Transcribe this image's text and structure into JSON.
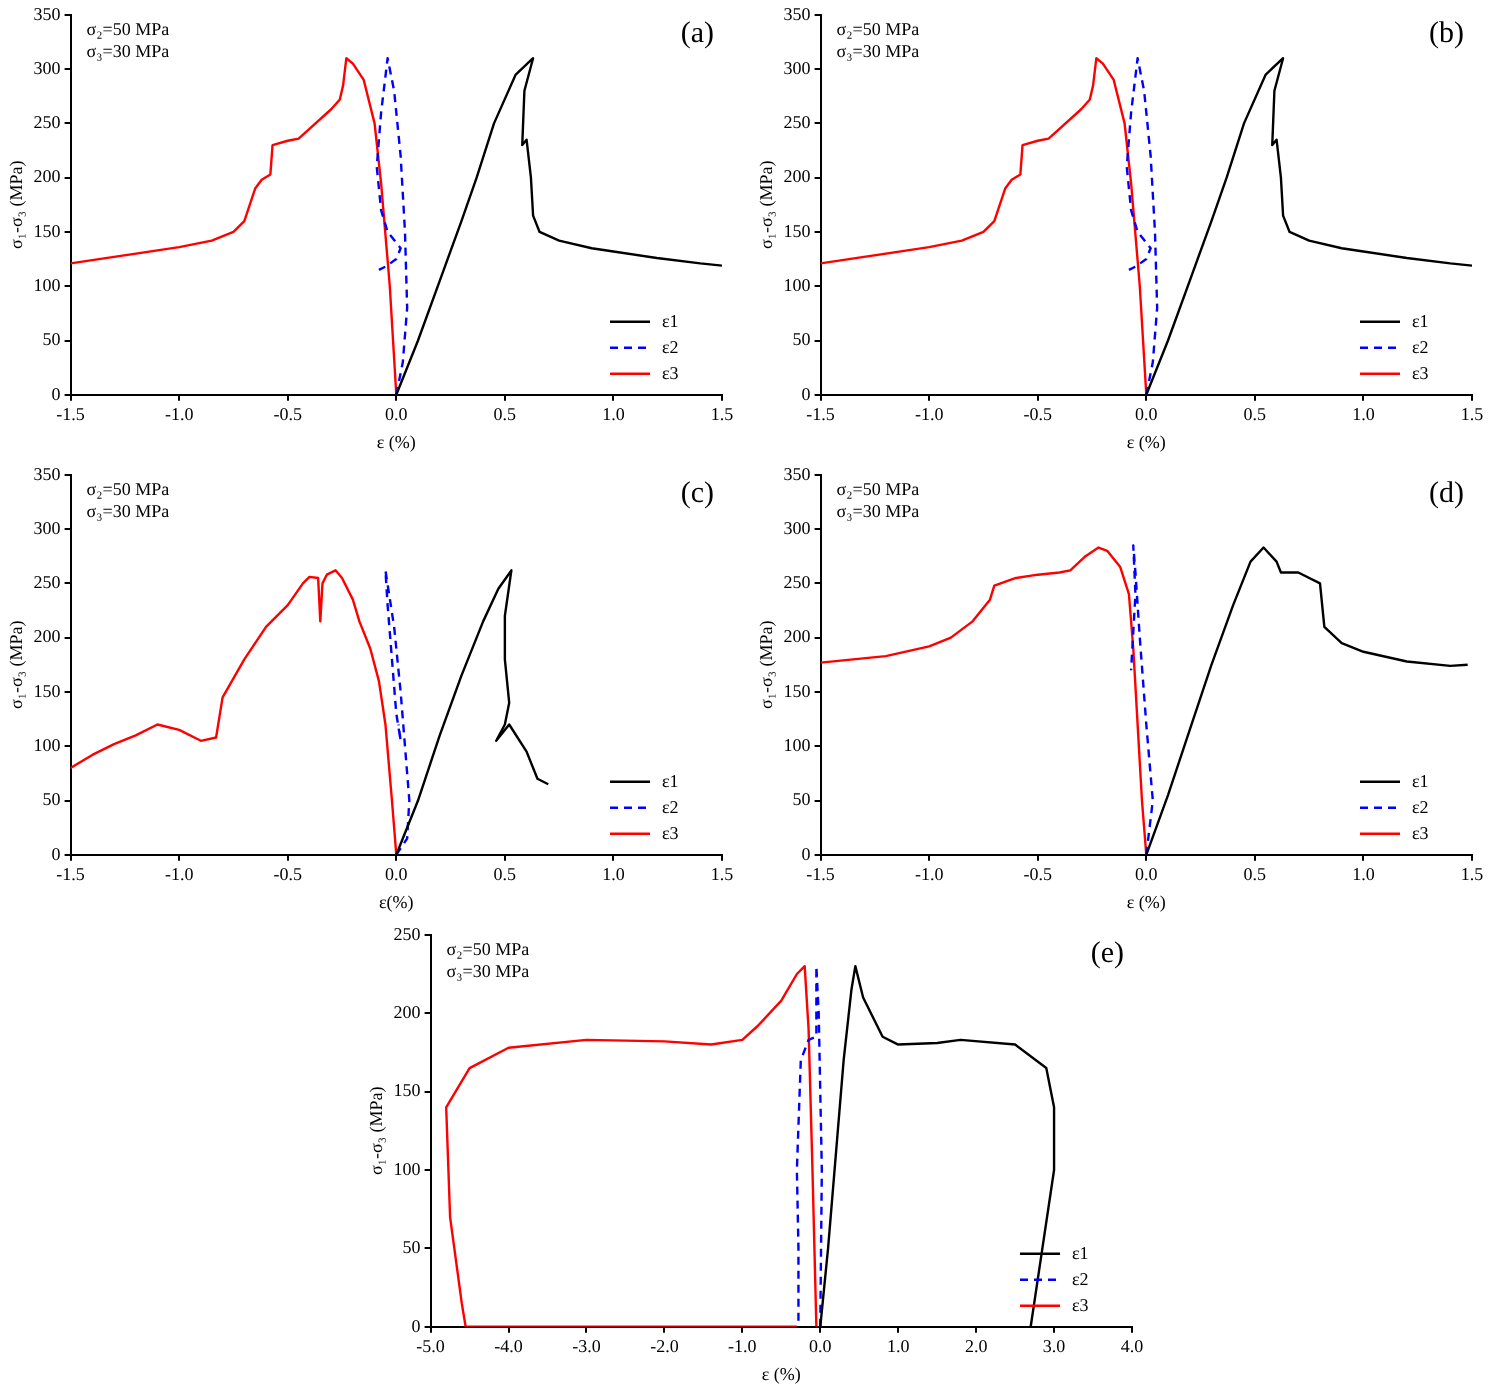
{
  "chart_data": [
    {
      "type": "line",
      "title": "(a)",
      "xlabel": "ε (%)",
      "ylabel": "σ₁-σ₃ (MPa)",
      "annotations": [
        "σ₂=50 MPa",
        "σ₃=30 MPa"
      ],
      "xlim": [
        -1.5,
        1.5
      ],
      "ylim": [
        0,
        350
      ],
      "xticks": [
        {
          "value": -1.5,
          "label": "-1.5"
        },
        {
          "value": -1,
          "label": "-1.0"
        },
        {
          "value": -0.5,
          "label": "-0.5"
        },
        {
          "value": 0,
          "label": "0.0"
        },
        {
          "value": 0.5,
          "label": "0.5"
        },
        {
          "value": 1,
          "label": "1.0"
        },
        {
          "value": 1.5,
          "label": "1.5"
        }
      ],
      "yticks": [
        0,
        50,
        100,
        150,
        200,
        250,
        300,
        350
      ],
      "grid": false,
      "legend": "bottom right",
      "marker": "none",
      "series": [
        {
          "name": "ε1",
          "color": "#000000",
          "line_style": "solid",
          "x": [
            0,
            0.1,
            0.2,
            0.3,
            0.37,
            0.45,
            0.55,
            0.63,
            0.59,
            0.58,
            0.6,
            0.62,
            0.63,
            0.66,
            0.75,
            0.9,
            1.0,
            1.2,
            1.4,
            1.5
          ],
          "values": [
            0,
            50,
            105,
            160,
            200,
            250,
            295,
            310,
            280,
            230,
            235,
            200,
            165,
            150,
            142,
            135,
            132,
            126,
            121,
            119
          ]
        },
        {
          "name": "ε2",
          "color": "#0000ff",
          "line_style": "dashed",
          "x": [
            0,
            0.03,
            0.05,
            0.04,
            0.02,
            -0.01,
            -0.04,
            -0.07,
            -0.09,
            -0.07,
            -0.04,
            0,
            0.02,
            0,
            -0.05,
            -0.08
          ],
          "values": [
            0,
            30,
            80,
            150,
            220,
            280,
            310,
            260,
            210,
            170,
            150,
            140,
            135,
            125,
            118,
            115
          ]
        },
        {
          "name": "ε3",
          "color": "#ff0000",
          "line_style": "solid",
          "x": [
            0,
            -0.03,
            -0.07,
            -0.1,
            -0.15,
            -0.2,
            -0.23,
            -0.245,
            -0.26,
            -0.3,
            -0.4,
            -0.45,
            -0.5,
            -0.57,
            -0.58,
            -0.62,
            -0.65,
            -0.7,
            -0.75,
            -0.85,
            -1.0,
            -1.1,
            -1.3,
            -1.5
          ],
          "values": [
            0,
            100,
            195,
            250,
            290,
            305,
            310,
            285,
            272,
            263,
            245,
            236,
            234,
            230,
            203,
            198,
            190,
            160,
            150,
            142,
            136,
            133,
            127,
            121
          ]
        }
      ]
    },
    {
      "type": "line",
      "title": "(b)",
      "xlabel": "ε (%)",
      "ylabel": "σ₁-σ₃ (MPa)",
      "annotations": [
        "σ₂=50 MPa",
        "σ₃=30 MPa"
      ],
      "xlim": [
        -1.5,
        1.5
      ],
      "ylim": [
        0,
        350
      ],
      "xticks": [
        {
          "value": -1.5,
          "label": "-1.5"
        },
        {
          "value": -1,
          "label": "-1.0"
        },
        {
          "value": -0.5,
          "label": "-0.5"
        },
        {
          "value": 0,
          "label": "0.0"
        },
        {
          "value": 0.5,
          "label": "0.5"
        },
        {
          "value": 1,
          "label": "1.0"
        },
        {
          "value": 1.5,
          "label": "1.5"
        }
      ],
      "yticks": [
        0,
        50,
        100,
        150,
        200,
        250,
        300,
        350
      ],
      "grid": false,
      "legend": "bottom right",
      "marker": "none",
      "series": [
        {
          "name": "ε1",
          "color": "#000000",
          "line_style": "solid",
          "x": [
            0,
            0.1,
            0.2,
            0.3,
            0.37,
            0.45,
            0.55,
            0.63,
            0.59,
            0.58,
            0.6,
            0.62,
            0.63,
            0.66,
            0.75,
            0.9,
            1.0,
            1.2,
            1.4,
            1.5
          ],
          "values": [
            0,
            50,
            105,
            160,
            200,
            250,
            295,
            310,
            280,
            230,
            235,
            200,
            165,
            150,
            142,
            135,
            132,
            126,
            121,
            119
          ]
        },
        {
          "name": "ε2",
          "color": "#0000ff",
          "line_style": "dashed",
          "x": [
            0,
            0.03,
            0.05,
            0.04,
            0.02,
            -0.01,
            -0.04,
            -0.07,
            -0.09,
            -0.07,
            -0.04,
            0,
            0.02,
            0,
            -0.05,
            -0.08
          ],
          "values": [
            0,
            30,
            80,
            150,
            220,
            280,
            310,
            260,
            210,
            170,
            150,
            140,
            135,
            125,
            118,
            115
          ]
        },
        {
          "name": "ε3",
          "color": "#ff0000",
          "line_style": "solid",
          "x": [
            0,
            -0.03,
            -0.07,
            -0.1,
            -0.15,
            -0.2,
            -0.23,
            -0.245,
            -0.26,
            -0.3,
            -0.4,
            -0.45,
            -0.5,
            -0.57,
            -0.58,
            -0.62,
            -0.65,
            -0.7,
            -0.75,
            -0.85,
            -1.0,
            -1.1,
            -1.3,
            -1.5
          ],
          "values": [
            0,
            100,
            195,
            250,
            290,
            305,
            310,
            285,
            272,
            263,
            245,
            236,
            234,
            230,
            203,
            198,
            190,
            160,
            150,
            142,
            136,
            133,
            127,
            121
          ]
        }
      ]
    },
    {
      "type": "line",
      "title": "(c)",
      "xlabel": "ε(%)",
      "ylabel": "σ₁-σ₃ (MPa)",
      "annotations": [
        "σ₂=50 MPa",
        "σ₃=30 MPa"
      ],
      "xlim": [
        -1.5,
        1.5
      ],
      "ylim": [
        0,
        350
      ],
      "xticks": [
        {
          "value": -1.5,
          "label": "-1.5"
        },
        {
          "value": -1,
          "label": "-1.0"
        },
        {
          "value": -0.5,
          "label": "-0.5"
        },
        {
          "value": 0,
          "label": "0.0"
        },
        {
          "value": 0.5,
          "label": "0.5"
        },
        {
          "value": 1,
          "label": "1.0"
        },
        {
          "value": 1.5,
          "label": "1.5"
        }
      ],
      "yticks": [
        0,
        50,
        100,
        150,
        200,
        250,
        300,
        350
      ],
      "grid": false,
      "legend": "bottom right",
      "marker": "none",
      "series": [
        {
          "name": "ε1",
          "color": "#000000",
          "line_style": "solid",
          "x": [
            0,
            0.1,
            0.2,
            0.3,
            0.4,
            0.47,
            0.53,
            0.5,
            0.5,
            0.52,
            0.5,
            0.46,
            0.52,
            0.6,
            0.65,
            0.7
          ],
          "values": [
            0,
            50,
            110,
            165,
            215,
            245,
            262,
            220,
            180,
            140,
            120,
            105,
            120,
            95,
            70,
            65
          ]
        },
        {
          "name": "ε2",
          "color": "#0000ff",
          "line_style": "dashed",
          "x": [
            0,
            0.05,
            0.06,
            0.04,
            0.02,
            -0.01,
            -0.05,
            -0.04,
            -0.02,
            0,
            0.02,
            0.01
          ],
          "values": [
            0,
            15,
            50,
            100,
            150,
            210,
            262,
            230,
            180,
            130,
            105,
            120
          ]
        },
        {
          "name": "ε3",
          "color": "#ff0000",
          "line_style": "solid",
          "x": [
            0,
            -0.02,
            -0.05,
            -0.08,
            -0.12,
            -0.17,
            -0.2,
            -0.25,
            -0.28,
            -0.32,
            -0.34,
            -0.35,
            -0.36,
            -0.4,
            -0.43,
            -0.5,
            -0.6,
            -0.7,
            -0.8,
            -0.83,
            -0.9,
            -1.0,
            -1.1,
            -1.2,
            -1.3,
            -1.4,
            -1.5
          ],
          "values": [
            0,
            50,
            120,
            160,
            190,
            215,
            235,
            255,
            262,
            258,
            250,
            215,
            255,
            256,
            250,
            230,
            210,
            180,
            145,
            108,
            105,
            115,
            120,
            110,
            102,
            92,
            80
          ]
        }
      ]
    },
    {
      "type": "line",
      "title": "(d)",
      "xlabel": "ε (%)",
      "ylabel": "σ₁-σ₃ (MPa)",
      "annotations": [
        "σ₂=50 MPa",
        "σ₃=30 MPa"
      ],
      "xlim": [
        -1.5,
        1.5
      ],
      "ylim": [
        0,
        350
      ],
      "xticks": [
        {
          "value": -1.5,
          "label": "-1.5"
        },
        {
          "value": -1,
          "label": "-1.0"
        },
        {
          "value": -0.5,
          "label": "-0.5"
        },
        {
          "value": 0,
          "label": "0.0"
        },
        {
          "value": 0.5,
          "label": "0.5"
        },
        {
          "value": 1,
          "label": "1.0"
        },
        {
          "value": 1.5,
          "label": "1.5"
        }
      ],
      "yticks": [
        0,
        50,
        100,
        150,
        200,
        250,
        300,
        350
      ],
      "grid": false,
      "legend": "bottom right",
      "marker": "none",
      "series": [
        {
          "name": "ε1",
          "color": "#000000",
          "line_style": "solid",
          "x": [
            0,
            0.1,
            0.2,
            0.3,
            0.4,
            0.48,
            0.54,
            0.6,
            0.62,
            0.7,
            0.8,
            0.82,
            0.9,
            1.0,
            1.2,
            1.4,
            1.48
          ],
          "values": [
            0,
            55,
            115,
            175,
            230,
            270,
            283,
            270,
            260,
            260,
            250,
            210,
            195,
            187,
            178,
            174,
            175
          ]
        },
        {
          "name": "ε2",
          "color": "#0000ff",
          "line_style": "dashed",
          "x": [
            0,
            0.03,
            0,
            -0.03,
            -0.05,
            -0.06,
            -0.05,
            -0.07
          ],
          "values": [
            0,
            50,
            120,
            200,
            260,
            285,
            240,
            170
          ]
        },
        {
          "name": "ε3",
          "color": "#ff0000",
          "line_style": "solid",
          "x": [
            0,
            -0.02,
            -0.04,
            -0.06,
            -0.08,
            -0.12,
            -0.18,
            -0.22,
            -0.28,
            -0.35,
            -0.4,
            -0.5,
            -0.6,
            -0.7,
            -0.72,
            -0.8,
            -0.9,
            -1.0,
            -1.2,
            -1.5
          ],
          "values": [
            0,
            50,
            120,
            190,
            240,
            265,
            280,
            283,
            275,
            262,
            260,
            258,
            255,
            248,
            235,
            215,
            200,
            192,
            183,
            177
          ]
        }
      ]
    },
    {
      "type": "line",
      "title": "(e)",
      "xlabel": "ε (%)",
      "ylabel": "σ₁-σ₃ (MPa)",
      "annotations": [
        "σ₂=50 MPa",
        "σ₃=30 MPa"
      ],
      "xlim": [
        -5,
        4
      ],
      "ylim": [
        0,
        250
      ],
      "xticks": [
        {
          "value": -5,
          "label": "-5.0"
        },
        {
          "value": -4,
          "label": "-4.0"
        },
        {
          "value": -3,
          "label": "-3.0"
        },
        {
          "value": -2,
          "label": "-2.0"
        },
        {
          "value": -1,
          "label": "-1.0"
        },
        {
          "value": 0,
          "label": "0.0"
        },
        {
          "value": 1,
          "label": "1.0"
        },
        {
          "value": 2,
          "label": "2.0"
        },
        {
          "value": 3,
          "label": "3.0"
        },
        {
          "value": 4,
          "label": "4.0"
        }
      ],
      "yticks": [
        0,
        50,
        100,
        150,
        200,
        250
      ],
      "grid": false,
      "legend": "bottom right",
      "marker": "none",
      "series": [
        {
          "name": "ε1",
          "color": "#000000",
          "line_style": "solid",
          "x": [
            0,
            0.1,
            0.2,
            0.3,
            0.4,
            0.45,
            0.55,
            0.8,
            1.0,
            1.5,
            1.8,
            2.5,
            2.9,
            3.0,
            3.0,
            2.85,
            2.7
          ],
          "values": [
            0,
            50,
            110,
            170,
            215,
            230,
            210,
            185,
            180,
            181,
            183,
            180,
            165,
            140,
            100,
            50,
            0
          ]
        },
        {
          "name": "ε2",
          "color": "#0000ff",
          "line_style": "dashed",
          "x": [
            0,
            0.02,
            -0.02,
            -0.05,
            -0.05,
            -0.15,
            -0.25,
            -0.3,
            -0.28,
            -0.28
          ],
          "values": [
            0,
            100,
            200,
            230,
            185,
            183,
            170,
            100,
            50,
            0
          ]
        },
        {
          "name": "ε3",
          "color": "#ff0000",
          "line_style": "solid",
          "x": [
            -0.05,
            -0.1,
            -0.15,
            -0.2,
            -0.3,
            -0.5,
            -0.8,
            -1.0,
            -1.4,
            -2.0,
            -3.0,
            -4.0,
            -4.5,
            -4.8,
            -4.75,
            -4.6,
            -4.55,
            -0.3
          ],
          "values": [
            0,
            100,
            190,
            230,
            225,
            208,
            192,
            183,
            180,
            182,
            183,
            178,
            165,
            140,
            70,
            15,
            0,
            0
          ]
        }
      ]
    }
  ]
}
